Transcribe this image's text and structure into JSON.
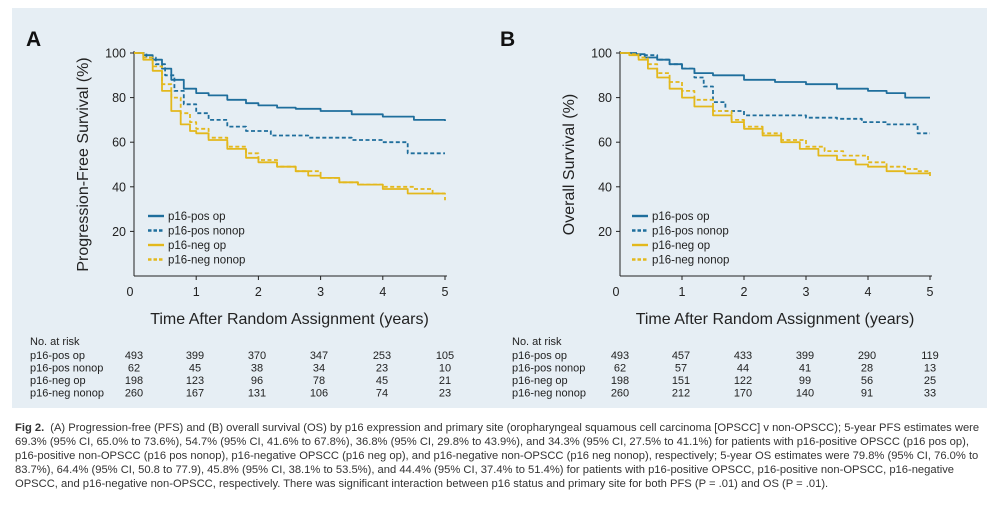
{
  "chart_data": [
    {
      "type": "line",
      "panel": "A",
      "xlabel": "Time After Random Assignment (years)",
      "ylabel": "Progression-Free Survival (%)",
      "xlim": [
        0,
        5
      ],
      "ylim": [
        0,
        100
      ],
      "xticks": [
        0,
        1,
        2,
        3,
        4,
        5
      ],
      "yticks": [
        20,
        40,
        60,
        80,
        100
      ],
      "grid": false,
      "legend_position": "bottom-left",
      "series": [
        {
          "name": "p16-pos op",
          "color": "#1f6e9c",
          "style": "solid",
          "x": [
            0,
            0.15,
            0.3,
            0.45,
            0.6,
            0.8,
            1.0,
            1.2,
            1.5,
            1.8,
            2.0,
            2.3,
            2.6,
            3.0,
            3.5,
            4.0,
            4.5,
            5.0
          ],
          "y": [
            100,
            99,
            97,
            93,
            88,
            84,
            82,
            81,
            79,
            77.5,
            76.5,
            75.5,
            75,
            74,
            72.5,
            71.5,
            70,
            69.5
          ]
        },
        {
          "name": "p16-pos nonop",
          "color": "#1f6e9c",
          "style": "dashed",
          "x": [
            0,
            0.2,
            0.35,
            0.5,
            0.65,
            0.8,
            1.0,
            1.2,
            1.5,
            1.8,
            2.2,
            2.8,
            3.5,
            4.0,
            4.4,
            5.0
          ],
          "y": [
            100,
            98,
            95,
            90,
            83,
            77,
            73,
            70,
            67,
            65,
            63,
            62,
            61,
            60,
            55,
            55
          ]
        },
        {
          "name": "p16-neg op",
          "color": "#e3b81c",
          "style": "solid",
          "x": [
            0,
            0.15,
            0.3,
            0.45,
            0.6,
            0.75,
            0.9,
            1.0,
            1.2,
            1.5,
            1.8,
            2.0,
            2.3,
            2.6,
            2.8,
            3.0,
            3.3,
            3.6,
            4.0,
            4.4,
            5.0
          ],
          "y": [
            100,
            97,
            92,
            83,
            74,
            68,
            65,
            64,
            61,
            57,
            53,
            51,
            49,
            47,
            45,
            44,
            42,
            41,
            39,
            37,
            37
          ]
        },
        {
          "name": "p16-neg nonop",
          "color": "#e3b81c",
          "style": "dashed",
          "x": [
            0,
            0.15,
            0.3,
            0.45,
            0.6,
            0.75,
            0.9,
            1.0,
            1.2,
            1.5,
            1.8,
            2.0,
            2.3,
            2.6,
            3.0,
            3.3,
            3.6,
            4.0,
            4.5,
            4.8,
            5.0
          ],
          "y": [
            100,
            98,
            94,
            86,
            80,
            73,
            69,
            66,
            62,
            58,
            55,
            52,
            49,
            47,
            44,
            42,
            41,
            40,
            39,
            37,
            34
          ]
        }
      ],
      "at_risk": {
        "title": "No. at risk",
        "rows": [
          {
            "label": "p16-pos op",
            "values": [
              493,
              399,
              370,
              347,
              253,
              105
            ]
          },
          {
            "label": "p16-pos nonop",
            "values": [
              62,
              45,
              38,
              34,
              23,
              10
            ]
          },
          {
            "label": "p16-neg op",
            "values": [
              198,
              123,
              96,
              78,
              45,
              21
            ]
          },
          {
            "label": "p16-neg nonop",
            "values": [
              260,
              167,
              131,
              106,
              74,
              23
            ]
          }
        ]
      }
    },
    {
      "type": "line",
      "panel": "B",
      "xlabel": "Time After Random Assignment (years)",
      "ylabel": "Overall Survival (%)",
      "xlim": [
        0,
        5
      ],
      "ylim": [
        0,
        100
      ],
      "xticks": [
        0,
        1,
        2,
        3,
        4,
        5
      ],
      "yticks": [
        20,
        40,
        60,
        80,
        100
      ],
      "grid": false,
      "legend_position": "bottom-left",
      "series": [
        {
          "name": "p16-pos op",
          "color": "#1f6e9c",
          "style": "solid",
          "x": [
            0,
            0.2,
            0.4,
            0.6,
            0.8,
            1.0,
            1.2,
            1.5,
            2.0,
            2.5,
            3.0,
            3.5,
            4.0,
            4.3,
            4.6,
            5.0
          ],
          "y": [
            100,
            99.5,
            98,
            97,
            95,
            93,
            91,
            90,
            88,
            87,
            86,
            84,
            83,
            82,
            80,
            80
          ]
        },
        {
          "name": "p16-pos nonop",
          "color": "#1f6e9c",
          "style": "dashed",
          "x": [
            0,
            0.3,
            0.6,
            0.8,
            1.0,
            1.2,
            1.35,
            1.5,
            1.7,
            2.0,
            2.5,
            3.0,
            3.5,
            3.9,
            4.3,
            4.7,
            4.8,
            5.0
          ],
          "y": [
            100,
            99,
            97,
            95,
            93,
            89,
            85,
            78,
            74,
            72,
            72,
            71,
            70.5,
            69,
            68,
            68,
            64,
            64
          ]
        },
        {
          "name": "p16-neg op",
          "color": "#e3b81c",
          "style": "solid",
          "x": [
            0,
            0.15,
            0.3,
            0.45,
            0.6,
            0.8,
            1.0,
            1.2,
            1.5,
            1.8,
            2.0,
            2.3,
            2.6,
            2.9,
            3.2,
            3.5,
            3.8,
            4.0,
            4.3,
            4.6,
            5.0
          ],
          "y": [
            100,
            99,
            97,
            93,
            89,
            84,
            80,
            76,
            72,
            69,
            66,
            63,
            60,
            57,
            54,
            52,
            50,
            49,
            47,
            46,
            46
          ]
        },
        {
          "name": "p16-neg nonop",
          "color": "#e3b81c",
          "style": "dashed",
          "x": [
            0,
            0.15,
            0.3,
            0.45,
            0.6,
            0.8,
            1.0,
            1.2,
            1.5,
            1.8,
            2.0,
            2.3,
            2.6,
            3.0,
            3.3,
            3.6,
            4.0,
            4.3,
            4.6,
            4.8,
            5.0
          ],
          "y": [
            100,
            99.5,
            98,
            95,
            91,
            87,
            83,
            79,
            74,
            70,
            67,
            64,
            61,
            58,
            56,
            54,
            51,
            49,
            48,
            47,
            44
          ]
        }
      ],
      "at_risk": {
        "title": "No. at risk",
        "rows": [
          {
            "label": "p16-pos op",
            "values": [
              493,
              457,
              433,
              399,
              290,
              119
            ]
          },
          {
            "label": "p16-pos nonop",
            "values": [
              62,
              57,
              44,
              41,
              28,
              13
            ]
          },
          {
            "label": "p16-neg op",
            "values": [
              198,
              151,
              122,
              99,
              56,
              25
            ]
          },
          {
            "label": "p16-neg nonop",
            "values": [
              260,
              212,
              170,
              140,
              91,
              33
            ]
          }
        ]
      }
    }
  ],
  "caption": {
    "label": "Fig 2.",
    "text": "(A) Progression-free (PFS) and (B) overall survival (OS) by p16 expression and primary site (oropharyngeal squamous cell carcinoma [OPSCC] v non-OPSCC); 5-year PFS estimates were 69.3% (95% CI, 65.0% to 73.6%), 54.7% (95% CI, 41.6% to 67.8%), 36.8% (95% CI, 29.8% to 43.9%), and 34.3% (95% CI, 27.5% to 41.1%) for patients with p16-positive OPSCC (p16 pos op), p16-positive non-OPSCC (p16 pos nonop), p16-negative OPSCC (p16 neg op), and p16-negative non-OPSCC (p16 neg nonop), respectively; 5-year OS estimates were 79.8% (95% CI, 76.0% to 83.7%), 64.4% (95% CI, 50.8 to 77.9), 45.8% (95% CI, 38.1% to 53.5%), and 44.4% (95% CI, 37.4% to 51.4%) for patients with p16-positive OPSCC, p16-positive non-OPSCC, p16-negative OPSCC, and p16-negative non-OPSCC, respectively. There was significant interaction between p16 status and primary site for both PFS (P = .01) and OS (P = .01)."
  }
}
